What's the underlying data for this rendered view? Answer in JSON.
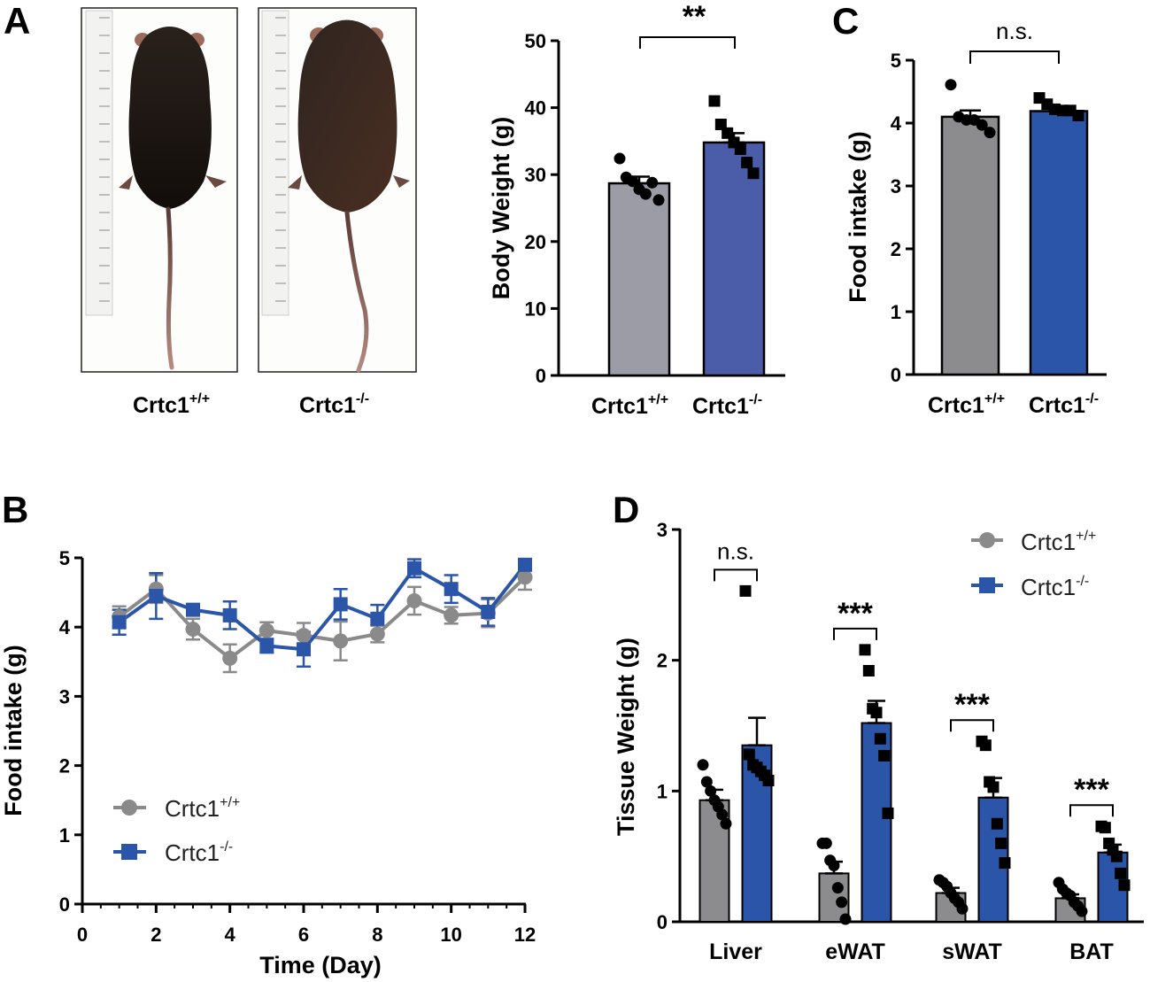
{
  "figure": {
    "panel_letters": [
      "A",
      "B",
      "C",
      "D"
    ],
    "photo_labels": [
      {
        "base": "Crtc1",
        "sup": "+/+"
      },
      {
        "base": "Crtc1",
        "sup": "-/-"
      }
    ]
  },
  "colors": {
    "wt_gray": "#8c8c8e",
    "wt_bar_light": "#9b9ca6",
    "ko_blue": "#2a55a8",
    "ko_bar_dark": "#4b5da8",
    "line_gray": "#8a8a8a",
    "line_blue": "#2a55a8"
  },
  "chart_data": [
    {
      "id": "A-bar",
      "type": "bar",
      "title": "",
      "ylabel": "Body Weight (g)",
      "xlabel": "",
      "ylim": [
        0,
        50
      ],
      "yticks": [
        0,
        10,
        20,
        30,
        40,
        50
      ],
      "categories": [
        {
          "base": "Crtc1",
          "sup": "+/+"
        },
        {
          "base": "Crtc1",
          "sup": "-/-"
        }
      ],
      "values": [
        28.7,
        34.8
      ],
      "errors": [
        1.0,
        1.4
      ],
      "points": [
        [
          32.4,
          29.6,
          29.0,
          27.8,
          27.1,
          28.8,
          26.2
        ],
        [
          41.0,
          37.5,
          36.2,
          34.8,
          33.8,
          31.8,
          30.2
        ]
      ],
      "significance": "**"
    },
    {
      "id": "C-bar",
      "type": "bar",
      "title": "",
      "ylabel": "Food intake (g)",
      "xlabel": "",
      "ylim": [
        0,
        5
      ],
      "yticks": [
        0,
        1,
        2,
        3,
        4,
        5
      ],
      "categories": [
        {
          "base": "Crtc1",
          "sup": "+/+"
        },
        {
          "base": "Crtc1",
          "sup": "-/-"
        }
      ],
      "values": [
        4.1,
        4.19
      ],
      "errors": [
        0.1,
        0.05
      ],
      "points": [
        [
          4.61,
          4.1,
          4.05,
          4.05,
          3.97,
          3.85
        ],
        [
          4.4,
          4.3,
          4.22,
          4.2,
          4.2,
          4.12
        ]
      ],
      "significance": "n.s."
    },
    {
      "id": "B-line",
      "type": "line",
      "title": "",
      "xlabel": "Time (Day)",
      "ylabel": "Food intake (g)",
      "xlim": [
        0,
        12
      ],
      "ylim": [
        0,
        5
      ],
      "xticks": [
        0,
        2,
        4,
        6,
        8,
        10,
        12
      ],
      "yticks": [
        0,
        1,
        2,
        3,
        4,
        5
      ],
      "x": [
        1,
        2,
        3,
        4,
        5,
        6,
        7,
        8,
        9,
        10,
        11,
        12
      ],
      "series": [
        {
          "name": {
            "base": "Crtc1",
            "sup": "+/+"
          },
          "marker": "circle",
          "values": [
            4.15,
            4.55,
            3.97,
            3.55,
            3.95,
            3.88,
            3.8,
            3.9,
            4.38,
            4.17,
            4.2,
            4.72
          ],
          "errors": [
            0.15,
            0.2,
            0.15,
            0.2,
            0.12,
            0.18,
            0.28,
            0.12,
            0.2,
            0.12,
            0.2,
            0.18
          ]
        },
        {
          "name": {
            "base": "Crtc1",
            "sup": "-/-"
          },
          "marker": "square",
          "values": [
            4.07,
            4.45,
            4.25,
            4.17,
            3.73,
            3.68,
            4.33,
            4.12,
            4.85,
            4.55,
            4.22,
            4.9
          ],
          "errors": [
            0.18,
            0.33,
            0.08,
            0.2,
            0.1,
            0.25,
            0.22,
            0.2,
            0.13,
            0.2,
            0.2,
            0.05
          ]
        }
      ],
      "legend_position": "bottom-left"
    },
    {
      "id": "D-grouped-bar",
      "type": "bar",
      "title": "",
      "xlabel": "",
      "ylabel": "Tissue Weight (g)",
      "ylim": [
        0,
        3
      ],
      "yticks": [
        0,
        1,
        2,
        3
      ],
      "categories": [
        "Liver",
        "eWAT",
        "sWAT",
        "BAT"
      ],
      "series": [
        {
          "name": {
            "base": "Crtc1",
            "sup": "+/+"
          },
          "marker": "circle",
          "values": [
            0.93,
            0.37,
            0.22,
            0.18
          ],
          "errors": [
            0.08,
            0.09,
            0.04,
            0.03
          ],
          "points": [
            [
              1.2,
              1.07,
              1.0,
              0.93,
              0.88,
              0.82,
              0.75
            ],
            [
              0.6,
              0.6,
              0.47,
              0.43,
              0.26,
              0.15,
              0.02
            ],
            [
              0.32,
              0.3,
              0.27,
              0.22,
              0.18,
              0.15,
              0.1
            ],
            [
              0.3,
              0.25,
              0.22,
              0.2,
              0.15,
              0.12,
              0.08
            ]
          ]
        },
        {
          "name": {
            "base": "Crtc1",
            "sup": "-/-"
          },
          "marker": "square",
          "values": [
            1.35,
            1.52,
            0.95,
            0.53
          ],
          "errors": [
            0.21,
            0.17,
            0.15,
            0.06
          ],
          "points": [
            [
              2.53,
              1.28,
              1.2,
              1.18,
              1.15,
              1.12,
              1.08
            ],
            [
              2.08,
              1.92,
              1.63,
              1.6,
              1.4,
              1.27,
              0.83
            ],
            [
              1.38,
              1.35,
              1.07,
              1.03,
              0.75,
              0.6,
              0.45
            ],
            [
              0.73,
              0.72,
              0.6,
              0.55,
              0.5,
              0.37,
              0.28
            ]
          ]
        }
      ],
      "significance": [
        "n.s.",
        "***",
        "***",
        "***"
      ],
      "legend_position": "top-right"
    }
  ]
}
